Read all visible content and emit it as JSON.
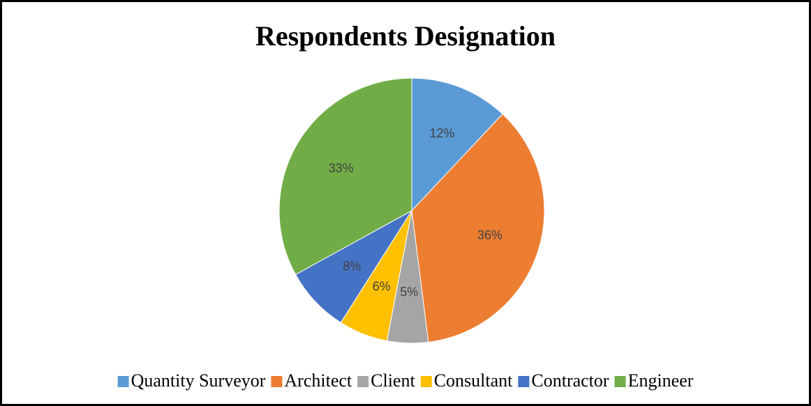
{
  "chart_data": {
    "type": "pie",
    "title": "Respondents Designation",
    "categories": [
      "Quantity Surveyor",
      "Architect",
      "Client",
      "Consultant",
      "Contractor",
      "Engineer"
    ],
    "values": [
      12,
      36,
      5,
      6,
      8,
      33
    ],
    "value_labels": [
      "12%",
      "36%",
      "5%",
      "6%",
      "8%",
      "33%"
    ],
    "colors": [
      "#5b9bd5",
      "#ed7d31",
      "#a5a5a5",
      "#ffc000",
      "#4472c4",
      "#70ad47"
    ],
    "legend": "bottom"
  }
}
